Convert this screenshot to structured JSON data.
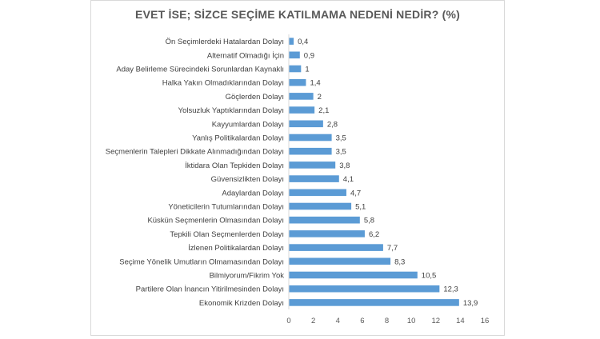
{
  "chart_data": {
    "type": "bar",
    "orientation": "horizontal",
    "title": "EVET İSE; SİZCE SEÇİME KATILMAMA NEDENİ NEDİR? (%)",
    "xlabel": "",
    "ylabel": "",
    "xlim": [
      0,
      16
    ],
    "ticks": [
      0,
      2,
      4,
      6,
      8,
      10,
      12,
      14,
      16
    ],
    "tick_labels": [
      "0",
      "2",
      "4",
      "6",
      "8",
      "10",
      "12",
      "14",
      "16"
    ],
    "grid": false,
    "legend": "none",
    "bar_color": "#5b9bd5",
    "categories": [
      "Ön Seçimlerdeki Hatalardan Dolayı",
      "Alternatif Olmadığı İçin",
      "Aday Belirleme Sürecindeki Sorunlardan Kaynaklı",
      "Halka Yakın Olmadıklarından Dolayı",
      "Göçlerden Dolayı",
      "Yolsuzluk Yaptıklarından Dolayı",
      "Kayyumlardan Dolayı",
      "Yanlış Politikalardan Dolayı",
      "Seçmenlerin Talepleri Dikkate Alınmadığından Dolayı",
      "İktidara Olan Tepkiden Dolayı",
      "Güvensizlikten Dolayı",
      "Adaylardan Dolayı",
      "Yöneticilerin Tutumlarından Dolayı",
      "Küskün Seçmenlerin Olmasından Dolayı",
      "Tepkili Olan Seçmenlerden Dolayı",
      "İzlenen Politikalardan Dolayı",
      "Seçime Yönelik Umutların Olmamasından Dolayı",
      "Bilmiyorum/Fikrim Yok",
      "Partilere Olan İnancın Yitirilmesinden Dolayı",
      "Ekonomik Krizden Dolayı"
    ],
    "values": [
      0.4,
      0.9,
      1,
      1.4,
      2,
      2.1,
      2.8,
      3.5,
      3.5,
      3.8,
      4.1,
      4.7,
      5.1,
      5.8,
      6.2,
      7.7,
      8.3,
      10.5,
      12.3,
      13.9
    ],
    "value_labels": [
      "0,4",
      "0,9",
      "1",
      "1,4",
      "2",
      "2,1",
      "2,8",
      "3,5",
      "3,5",
      "3,8",
      "4,1",
      "4,7",
      "5,1",
      "5,8",
      "6,2",
      "7,7",
      "8,3",
      "10,5",
      "12,3",
      "13,9"
    ]
  }
}
